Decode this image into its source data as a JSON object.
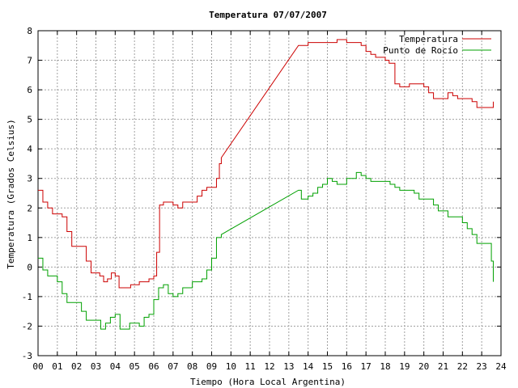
{
  "chart_data": {
    "type": "line",
    "title": "Temperatura 07/07/2007",
    "xlabel": "Tiempo (Hora Local Argentina)",
    "ylabel": "Temperatura (Grados Celsius)",
    "xlim": [
      0,
      24
    ],
    "ylim": [
      -3,
      8
    ],
    "x_tick_labels": [
      "00",
      "01",
      "02",
      "03",
      "04",
      "05",
      "06",
      "07",
      "08",
      "09",
      "10",
      "11",
      "12",
      "13",
      "14",
      "15",
      "16",
      "17",
      "18",
      "19",
      "20",
      "21",
      "22",
      "23",
      "24"
    ],
    "y_ticks": [
      -3,
      -2,
      -1,
      0,
      1,
      2,
      3,
      4,
      5,
      6,
      7,
      8
    ],
    "grid": true,
    "legend_position": "top-right",
    "series": [
      {
        "name": "Temperatura",
        "color": "#cc0000",
        "x": [
          0,
          0.25,
          0.5,
          0.75,
          1.0,
          1.25,
          1.5,
          1.75,
          2.0,
          2.25,
          2.5,
          2.75,
          3.0,
          3.2,
          3.4,
          3.6,
          3.8,
          4.0,
          4.2,
          4.4,
          4.6,
          4.8,
          5.0,
          5.25,
          5.5,
          5.75,
          6.0,
          6.15,
          6.3,
          6.5,
          6.75,
          7.0,
          7.25,
          7.5,
          7.75,
          8.0,
          8.25,
          8.5,
          8.75,
          9.0,
          9.25,
          9.4,
          9.5,
          13.5,
          13.75,
          14.0,
          14.25,
          14.5,
          14.75,
          15.0,
          15.25,
          15.5,
          15.75,
          16.0,
          16.25,
          16.5,
          16.75,
          17.0,
          17.25,
          17.5,
          17.75,
          18.0,
          18.2,
          18.5,
          18.75,
          19.0,
          19.25,
          19.5,
          19.75,
          20.0,
          20.25,
          20.5,
          20.75,
          21.0,
          21.25,
          21.5,
          21.75,
          22.0,
          22.25,
          22.5,
          22.75,
          23.0,
          23.25,
          23.5,
          23.6
        ],
        "values": [
          2.6,
          2.2,
          2.0,
          1.8,
          1.8,
          1.7,
          1.2,
          0.7,
          0.7,
          0.7,
          0.2,
          -0.2,
          -0.2,
          -0.3,
          -0.5,
          -0.4,
          -0.2,
          -0.3,
          -0.7,
          -0.7,
          -0.7,
          -0.6,
          -0.6,
          -0.5,
          -0.5,
          -0.4,
          -0.3,
          0.5,
          2.1,
          2.2,
          2.2,
          2.1,
          2.0,
          2.2,
          2.2,
          2.2,
          2.4,
          2.6,
          2.7,
          2.7,
          3.0,
          3.5,
          3.7,
          7.5,
          7.5,
          7.6,
          7.6,
          7.6,
          7.6,
          7.6,
          7.6,
          7.7,
          7.7,
          7.6,
          7.6,
          7.6,
          7.5,
          7.3,
          7.2,
          7.1,
          7.1,
          7.0,
          6.9,
          6.2,
          6.1,
          6.1,
          6.2,
          6.2,
          6.2,
          6.1,
          5.9,
          5.7,
          5.7,
          5.7,
          5.9,
          5.8,
          5.7,
          5.7,
          5.7,
          5.6,
          5.4,
          5.4,
          5.4,
          5.4,
          5.6
        ]
      },
      {
        "name": "Punto de Rocío",
        "color": "#00a000",
        "x": [
          0,
          0.25,
          0.5,
          0.75,
          1.0,
          1.25,
          1.5,
          1.75,
          2.0,
          2.25,
          2.5,
          2.75,
          3.0,
          3.25,
          3.5,
          3.75,
          4.0,
          4.25,
          4.5,
          4.75,
          5.0,
          5.25,
          5.5,
          5.75,
          6.0,
          6.25,
          6.5,
          6.75,
          7.0,
          7.25,
          7.5,
          7.75,
          8.0,
          8.25,
          8.5,
          8.75,
          9.0,
          9.25,
          9.5,
          13.5,
          13.65,
          14.0,
          14.25,
          14.5,
          14.75,
          15.0,
          15.25,
          15.5,
          15.75,
          16.0,
          16.25,
          16.5,
          16.75,
          17.0,
          17.25,
          17.5,
          17.75,
          18.0,
          18.25,
          18.5,
          18.75,
          19.0,
          19.25,
          19.5,
          19.75,
          20.0,
          20.25,
          20.5,
          20.75,
          21.0,
          21.25,
          21.5,
          21.75,
          22.0,
          22.25,
          22.5,
          22.75,
          23.0,
          23.25,
          23.5,
          23.6
        ],
        "values": [
          0.3,
          -0.1,
          -0.3,
          -0.3,
          -0.5,
          -0.9,
          -1.2,
          -1.2,
          -1.2,
          -1.5,
          -1.8,
          -1.8,
          -1.8,
          -2.1,
          -1.9,
          -1.7,
          -1.6,
          -2.1,
          -2.1,
          -1.9,
          -1.9,
          -2.0,
          -1.7,
          -1.6,
          -1.1,
          -0.7,
          -0.6,
          -0.9,
          -1.0,
          -0.9,
          -0.7,
          -0.7,
          -0.5,
          -0.5,
          -0.4,
          -0.1,
          0.3,
          1.0,
          1.1,
          2.6,
          2.3,
          2.4,
          2.5,
          2.7,
          2.8,
          3.0,
          2.9,
          2.8,
          2.8,
          3.0,
          3.0,
          3.2,
          3.1,
          3.0,
          2.9,
          2.9,
          2.9,
          2.9,
          2.8,
          2.7,
          2.6,
          2.6,
          2.6,
          2.5,
          2.3,
          2.3,
          2.3,
          2.1,
          1.9,
          1.9,
          1.7,
          1.7,
          1.7,
          1.5,
          1.3,
          1.1,
          0.8,
          0.8,
          0.8,
          0.2,
          -0.5
        ]
      }
    ]
  }
}
